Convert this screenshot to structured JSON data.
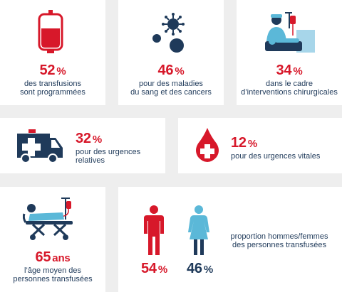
{
  "stats": {
    "programmed": {
      "value": "52",
      "unit": "%",
      "line1": "des transfusions",
      "line2": "sont programmées"
    },
    "blood_cancer": {
      "value": "46",
      "unit": "%",
      "line1": "pour des maladies",
      "line2": "du sang et des cancers"
    },
    "surgery": {
      "value": "34",
      "unit": "%",
      "line1": "dans le cadre",
      "line2": "d’interventions chirurgicales"
    },
    "relative_emergency": {
      "value": "32",
      "unit": "%",
      "line1": "pour des urgences",
      "line2": "relatives"
    },
    "vital_emergency": {
      "value": "12",
      "unit": "%",
      "line1": "pour des urgences vitales"
    },
    "mean_age": {
      "value": "65",
      "unit": "ans",
      "line1": "l’âge moyen des",
      "line2": "personnes transfusées"
    },
    "gender": {
      "men": {
        "value": "54",
        "unit": "%"
      },
      "women": {
        "value": "46",
        "unit": "%"
      },
      "line1": "proportion hommes/femmes",
      "line2": "des personnes transfusées"
    }
  },
  "colors": {
    "red": "#d7182a",
    "navy": "#1f3a5a",
    "light_blue": "#5bb8d8",
    "card": "#ffffff",
    "background": "#eeeeee"
  },
  "icons": [
    "blood-bag-icon",
    "virus-icon",
    "surgeon-icon",
    "ambulance-icon",
    "blood-drop-cross-icon",
    "stretcher-patient-icon",
    "man-icon",
    "woman-icon"
  ]
}
